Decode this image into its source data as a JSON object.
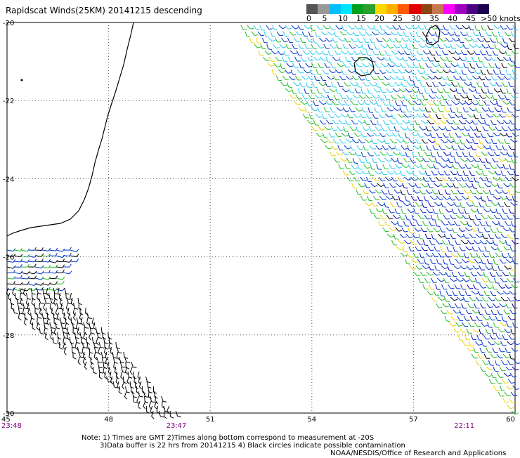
{
  "title": "Rapidscat Winds(25KM) 20141215 descending",
  "colorbar": {
    "labels": [
      "0",
      "5",
      "10",
      "15",
      "20",
      "25",
      "30",
      "35",
      "40",
      "45",
      ">50 knots"
    ],
    "colors": [
      "#555555",
      "#999999",
      "#00bfff",
      "#00e5ff",
      "#00a020",
      "#2ca02c",
      "#ffd700",
      "#ffb000",
      "#ff5a00",
      "#e00000",
      "#8b4513",
      "#c87850",
      "#ff00ff",
      "#a000c0",
      "#4b0082",
      "#1a0050"
    ]
  },
  "map": {
    "lat_labels": [
      "-20",
      "-22",
      "-24",
      "-26",
      "-28",
      "-30"
    ],
    "lon_labels": [
      "45",
      "48",
      "51",
      "54",
      "57",
      "60"
    ],
    "time_labels": [
      {
        "text": "23:48",
        "lon": 45
      },
      {
        "text": "23:47",
        "lon": 50
      },
      {
        "text": "22:11",
        "lon": 58.5
      }
    ],
    "colors": {
      "blue": "#0033cc",
      "navy": "#0000aa",
      "cyan": "#22ccee",
      "green": "#22bb22",
      "yellow": "#f0d000",
      "black": "#000000",
      "coast": "#000000",
      "grid": "#555555",
      "time": "#800080"
    }
  },
  "notes": {
    "line1": "Note: 1) Times are GMT 2)Times along bottom correspond to measurement at -20S",
    "line2": "3)Data buffer is 22 hrs from 20141215 4) Black circles indicate possible contamination",
    "line3": "NOAA/NESDIS/Office of Research and Applications"
  }
}
